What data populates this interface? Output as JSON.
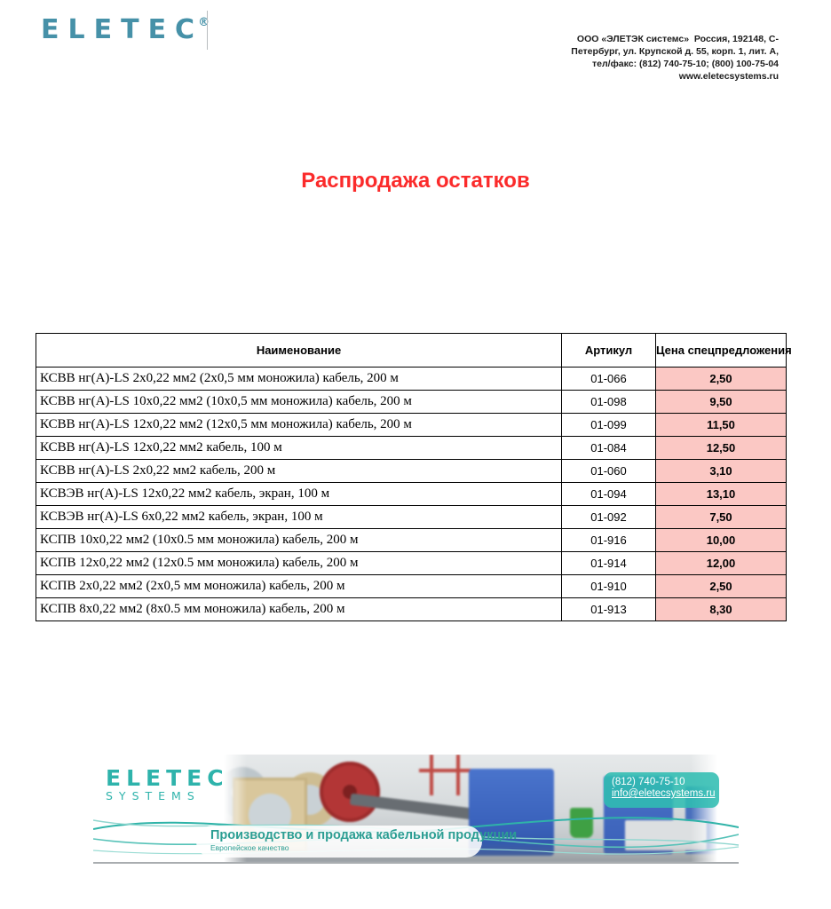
{
  "header": {
    "logo_text": "ELETEC",
    "registered_mark": "®",
    "contact_lines": [
      "ООО «ЭЛЕТЭК системс»  Россия, 192148, С-",
      "Петербург, ул. Крупской д. 55, корп. 1, лит. А,",
      "тел/факс: (812) 740-75-10; (800) 100-75-04",
      "www.eletecsystems.ru"
    ]
  },
  "title": "Распродажа остатков",
  "table": {
    "columns": [
      "Наименование",
      "Артикул",
      "Цена спецпредложения"
    ],
    "rows": [
      {
        "name": "КСВВ нг(А)-LS 2х0,22 мм2 (2х0,5 мм моножила) кабель, 200 м",
        "article": "01-066",
        "price": "2,50"
      },
      {
        "name": "КСВВ нг(А)-LS 10х0,22 мм2 (10х0,5 мм моножила) кабель, 200 м",
        "article": "01-098",
        "price": "9,50"
      },
      {
        "name": "КСВВ нг(А)-LS 12х0,22 мм2 (12х0,5 мм моножила) кабель, 200 м",
        "article": "01-099",
        "price": "11,50"
      },
      {
        "name": "КСВВ нг(А)-LS 12х0,22 мм2 кабель, 100 м",
        "article": "01-084",
        "price": "12,50"
      },
      {
        "name": "КСВВ нг(А)-LS 2х0,22 мм2 кабель, 200 м",
        "article": "01-060",
        "price": "3,10"
      },
      {
        "name": "КСВЭВ нг(А)-LS 12х0,22 мм2 кабель, экран, 100 м",
        "article": "01-094",
        "price": "13,10"
      },
      {
        "name": "КСВЭВ нг(А)-LS 6х0,22 мм2 кабель, экран, 100 м",
        "article": "01-092",
        "price": "7,50"
      },
      {
        "name": "КСПВ 10х0,22 мм2 (10х0.5 мм моножила) кабель, 200 м",
        "article": "01-916",
        "price": "10,00"
      },
      {
        "name": "КСПВ 12х0,22 мм2 (12х0.5 мм моножила) кабель, 200 м",
        "article": "01-914",
        "price": "12,00"
      },
      {
        "name": "КСПВ 2х0,22 мм2 (2х0,5 мм моножила) кабель, 200 м",
        "article": "01-910",
        "price": "2,50"
      },
      {
        "name": "КСПВ 8х0,22 мм2 (8х0.5 мм моножила) кабель, 200 м",
        "article": "01-913",
        "price": "8,30"
      }
    ]
  },
  "banner": {
    "logo_line1": "ELETEC",
    "logo_line2": "SYSTEMS",
    "phone": "(812) 740-75-10",
    "email": "info@eletecsystems.ru",
    "tagline": "Производство и продажа кабельной продукции",
    "subtagline": "Европейское качество"
  },
  "colors": {
    "accent_red": "#fb2b2b",
    "price_cell_pink": "#fbc8c4",
    "logo_teal": "#4691a8",
    "banner_teal": "#2eb3ab",
    "table_border": "#000000"
  }
}
